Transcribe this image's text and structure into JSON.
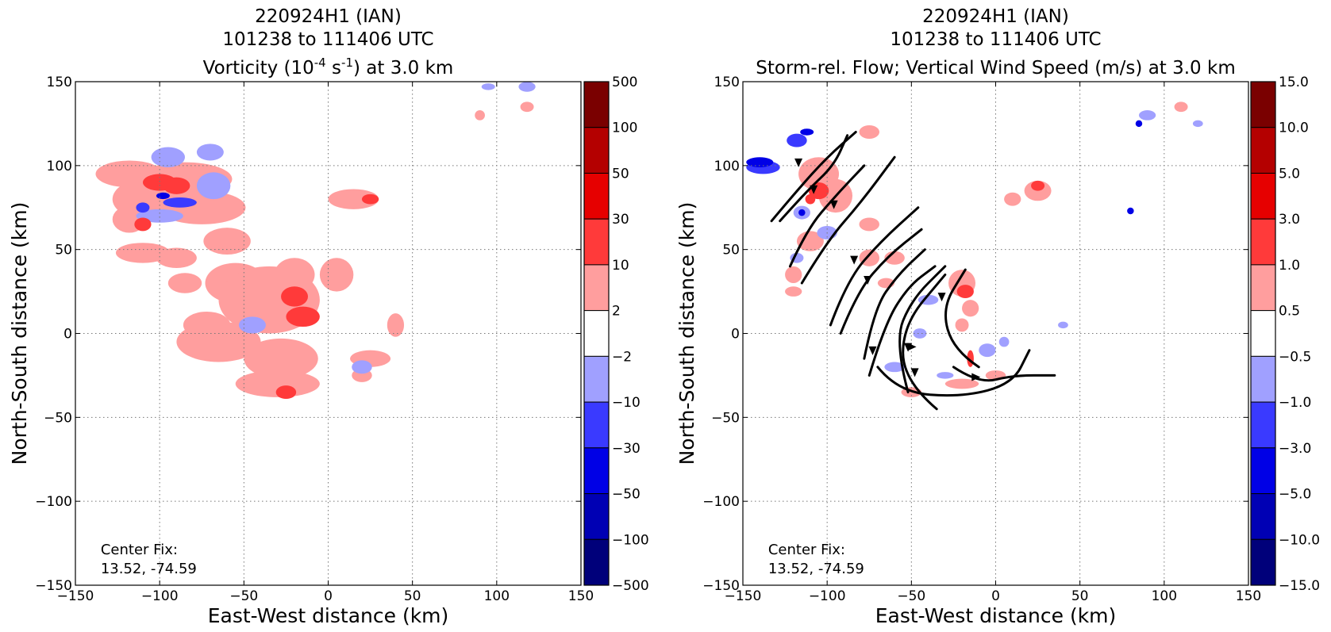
{
  "chart_data": [
    {
      "type": "contour",
      "title_lines": [
        "220924H1 (IAN)",
        "101238 to 111406 UTC"
      ],
      "title_var": {
        "pre": "Vorticity (10",
        "sup1": "-4",
        "mid": " s",
        "sup2": "-1",
        "post": ") at 3.0 km"
      },
      "xlabel": "East-West distance (km)",
      "ylabel": "North-South distance (km)",
      "xlim": [
        -150,
        150
      ],
      "ylim": [
        -150,
        150
      ],
      "ticks": [
        -150,
        -100,
        -50,
        0,
        50,
        100,
        150
      ],
      "tick_labels": [
        "−150",
        "−100",
        "−50",
        "0",
        "50",
        "100",
        "150"
      ],
      "grid": true,
      "annotation": [
        "Center Fix:",
        "13.52, -74.59"
      ],
      "colorbar": {
        "levels": [
          "500",
          "100",
          "50",
          "30",
          "10",
          "2",
          "−2",
          "−10",
          "−30",
          "−50",
          "−100",
          "−500"
        ],
        "colors": [
          "#7a0000",
          "#b40000",
          "#e60000",
          "#ff3a3a",
          "#ff9e9e",
          "#ffffff",
          "#a0a0ff",
          "#3a3aff",
          "#0000e6",
          "#0000b4",
          "#00007a"
        ]
      },
      "features": [
        {
          "c": 4,
          "x": -118,
          "y": 95,
          "rx": 20,
          "ry": 8
        },
        {
          "c": 4,
          "x": -108,
          "y": 80,
          "rx": 20,
          "ry": 12
        },
        {
          "c": 4,
          "x": -85,
          "y": 92,
          "rx": 28,
          "ry": 10
        },
        {
          "c": 4,
          "x": -75,
          "y": 75,
          "rx": 26,
          "ry": 10
        },
        {
          "c": 4,
          "x": -118,
          "y": 68,
          "rx": 10,
          "ry": 8
        },
        {
          "c": 4,
          "x": -110,
          "y": 48,
          "rx": 16,
          "ry": 6
        },
        {
          "c": 4,
          "x": -90,
          "y": 45,
          "rx": 12,
          "ry": 6
        },
        {
          "c": 4,
          "x": -85,
          "y": 30,
          "rx": 10,
          "ry": 6
        },
        {
          "c": 4,
          "x": -60,
          "y": 55,
          "rx": 14,
          "ry": 8
        },
        {
          "c": 4,
          "x": -55,
          "y": 30,
          "rx": 18,
          "ry": 12
        },
        {
          "c": 4,
          "x": -72,
          "y": 5,
          "rx": 14,
          "ry": 8
        },
        {
          "c": 4,
          "x": -65,
          "y": -5,
          "rx": 25,
          "ry": 12
        },
        {
          "c": 4,
          "x": -35,
          "y": 20,
          "rx": 30,
          "ry": 20
        },
        {
          "c": 4,
          "x": -20,
          "y": 35,
          "rx": 12,
          "ry": 10
        },
        {
          "c": 4,
          "x": -28,
          "y": -15,
          "rx": 22,
          "ry": 12
        },
        {
          "c": 4,
          "x": -30,
          "y": -30,
          "rx": 25,
          "ry": 8
        },
        {
          "c": 4,
          "x": 5,
          "y": 35,
          "rx": 10,
          "ry": 10
        },
        {
          "c": 4,
          "x": 15,
          "y": 80,
          "rx": 15,
          "ry": 6
        },
        {
          "c": 4,
          "x": 25,
          "y": -15,
          "rx": 12,
          "ry": 5
        },
        {
          "c": 4,
          "x": 40,
          "y": 5,
          "rx": 5,
          "ry": 7
        },
        {
          "c": 4,
          "x": 20,
          "y": -25,
          "rx": 6,
          "ry": 4
        },
        {
          "c": 6,
          "x": -95,
          "y": 105,
          "rx": 10,
          "ry": 6
        },
        {
          "c": 6,
          "x": -68,
          "y": 88,
          "rx": 10,
          "ry": 8
        },
        {
          "c": 6,
          "x": -100,
          "y": 70,
          "rx": 14,
          "ry": 4
        },
        {
          "c": 6,
          "x": -70,
          "y": 108,
          "rx": 8,
          "ry": 5
        },
        {
          "c": 6,
          "x": -45,
          "y": 5,
          "rx": 8,
          "ry": 5
        },
        {
          "c": 6,
          "x": 20,
          "y": -20,
          "rx": 6,
          "ry": 4
        },
        {
          "c": 6,
          "x": 118,
          "y": 147,
          "rx": 5,
          "ry": 3
        },
        {
          "c": 6,
          "x": 95,
          "y": 147,
          "rx": 4,
          "ry": 2
        },
        {
          "c": 4,
          "x": 118,
          "y": 135,
          "rx": 4,
          "ry": 3
        },
        {
          "c": 4,
          "x": 90,
          "y": 130,
          "rx": 3,
          "ry": 3
        },
        {
          "c": 3,
          "x": -100,
          "y": 90,
          "rx": 10,
          "ry": 5
        },
        {
          "c": 3,
          "x": -90,
          "y": 88,
          "rx": 8,
          "ry": 5
        },
        {
          "c": 3,
          "x": -20,
          "y": 22,
          "rx": 8,
          "ry": 6
        },
        {
          "c": 3,
          "x": -15,
          "y": 10,
          "rx": 10,
          "ry": 6
        },
        {
          "c": 3,
          "x": -25,
          "y": -35,
          "rx": 6,
          "ry": 4
        },
        {
          "c": 3,
          "x": -110,
          "y": 65,
          "rx": 5,
          "ry": 4
        },
        {
          "c": 3,
          "x": 25,
          "y": 80,
          "rx": 5,
          "ry": 3
        },
        {
          "c": 7,
          "x": -88,
          "y": 78,
          "rx": 10,
          "ry": 3
        },
        {
          "c": 7,
          "x": -110,
          "y": 75,
          "rx": 4,
          "ry": 3
        },
        {
          "c": 8,
          "x": -98,
          "y": 82,
          "rx": 4,
          "ry": 2
        }
      ]
    },
    {
      "type": "contour",
      "title_lines": [
        "220924H1 (IAN)",
        "101238 to 111406 UTC"
      ],
      "title_var": {
        "pre": "Storm-rel. Flow; Vertical Wind Speed (m/s) at 3.0 km",
        "sup1": "",
        "mid": "",
        "sup2": "",
        "post": ""
      },
      "xlabel": "East-West distance (km)",
      "ylabel": "North-South distance (km)",
      "xlim": [
        -150,
        150
      ],
      "ylim": [
        -150,
        150
      ],
      "ticks": [
        -150,
        -100,
        -50,
        0,
        50,
        100,
        150
      ],
      "tick_labels": [
        "−150",
        "−100",
        "−50",
        "0",
        "50",
        "100",
        "150"
      ],
      "grid": true,
      "annotation": [
        "Center Fix:",
        "13.52, -74.59"
      ],
      "colorbar": {
        "levels": [
          "15.0",
          "10.0",
          "5.0",
          "3.0",
          "1.0",
          "0.5",
          "−0.5",
          "−1.0",
          "−3.0",
          "−5.0",
          "−10.0",
          "−15.0"
        ],
        "colors": [
          "#7a0000",
          "#b40000",
          "#e60000",
          "#ff3a3a",
          "#ff9e9e",
          "#ffffff",
          "#a0a0ff",
          "#3a3aff",
          "#0000e6",
          "#0000b4",
          "#00007a"
        ]
      },
      "features": [
        {
          "c": 4,
          "x": -105,
          "y": 95,
          "rx": 12,
          "ry": 10
        },
        {
          "c": 4,
          "x": -95,
          "y": 82,
          "rx": 10,
          "ry": 10
        },
        {
          "c": 4,
          "x": -110,
          "y": 55,
          "rx": 8,
          "ry": 6
        },
        {
          "c": 4,
          "x": -120,
          "y": 35,
          "rx": 5,
          "ry": 5
        },
        {
          "c": 4,
          "x": -75,
          "y": 65,
          "rx": 6,
          "ry": 4
        },
        {
          "c": 4,
          "x": -75,
          "y": 45,
          "rx": 6,
          "ry": 5
        },
        {
          "c": 4,
          "x": -60,
          "y": 45,
          "rx": 6,
          "ry": 4
        },
        {
          "c": 4,
          "x": -20,
          "y": 30,
          "rx": 8,
          "ry": 8
        },
        {
          "c": 4,
          "x": -15,
          "y": 15,
          "rx": 5,
          "ry": 5
        },
        {
          "c": 4,
          "x": -20,
          "y": 5,
          "rx": 4,
          "ry": 4
        },
        {
          "c": 4,
          "x": 25,
          "y": 85,
          "rx": 8,
          "ry": 6
        },
        {
          "c": 4,
          "x": 10,
          "y": 80,
          "rx": 5,
          "ry": 4
        },
        {
          "c": 4,
          "x": -75,
          "y": 120,
          "rx": 6,
          "ry": 4
        },
        {
          "c": 4,
          "x": -50,
          "y": -35,
          "rx": 6,
          "ry": 3
        },
        {
          "c": 4,
          "x": -20,
          "y": -30,
          "rx": 10,
          "ry": 3
        },
        {
          "c": 4,
          "x": 0,
          "y": -25,
          "rx": 6,
          "ry": 3
        },
        {
          "c": 4,
          "x": 110,
          "y": 135,
          "rx": 4,
          "ry": 3
        },
        {
          "c": 4,
          "x": -120,
          "y": 25,
          "rx": 5,
          "ry": 3
        },
        {
          "c": 4,
          "x": -65,
          "y": 30,
          "rx": 5,
          "ry": 3
        },
        {
          "c": 3,
          "x": -105,
          "y": 85,
          "rx": 6,
          "ry": 5
        },
        {
          "c": 3,
          "x": -110,
          "y": 80,
          "rx": 3,
          "ry": 3
        },
        {
          "c": 3,
          "x": -18,
          "y": 25,
          "rx": 5,
          "ry": 4
        },
        {
          "c": 3,
          "x": 25,
          "y": 88,
          "rx": 4,
          "ry": 3
        },
        {
          "c": 3,
          "x": -15,
          "y": -15,
          "rx": 2,
          "ry": 5
        },
        {
          "c": 7,
          "x": -138,
          "y": 99,
          "rx": 10,
          "ry": 4
        },
        {
          "c": 7,
          "x": -118,
          "y": 115,
          "rx": 6,
          "ry": 4
        },
        {
          "c": 6,
          "x": -115,
          "y": 72,
          "rx": 5,
          "ry": 4
        },
        {
          "c": 6,
          "x": -100,
          "y": 60,
          "rx": 6,
          "ry": 4
        },
        {
          "c": 6,
          "x": -118,
          "y": 45,
          "rx": 4,
          "ry": 3
        },
        {
          "c": 6,
          "x": -40,
          "y": 20,
          "rx": 6,
          "ry": 3
        },
        {
          "c": 6,
          "x": -45,
          "y": 0,
          "rx": 4,
          "ry": 3
        },
        {
          "c": 6,
          "x": -60,
          "y": -20,
          "rx": 6,
          "ry": 3
        },
        {
          "c": 6,
          "x": -5,
          "y": -10,
          "rx": 5,
          "ry": 4
        },
        {
          "c": 6,
          "x": 5,
          "y": -5,
          "rx": 3,
          "ry": 3
        },
        {
          "c": 6,
          "x": 90,
          "y": 130,
          "rx": 5,
          "ry": 3
        },
        {
          "c": 6,
          "x": 120,
          "y": 125,
          "rx": 3,
          "ry": 2
        },
        {
          "c": 6,
          "x": -30,
          "y": -25,
          "rx": 5,
          "ry": 2
        },
        {
          "c": 6,
          "x": 40,
          "y": 5,
          "rx": 3,
          "ry": 2
        },
        {
          "c": 8,
          "x": -140,
          "y": 102,
          "rx": 8,
          "ry": 3
        },
        {
          "c": 8,
          "x": -112,
          "y": 120,
          "rx": 4,
          "ry": 2
        },
        {
          "c": 8,
          "x": 85,
          "y": 125,
          "rx": 2,
          "ry": 2
        },
        {
          "c": 8,
          "x": 80,
          "y": 73,
          "rx": 2,
          "ry": 2
        },
        {
          "c": 8,
          "x": -115,
          "y": 72,
          "rx": 2,
          "ry": 2
        }
      ],
      "streamlines": [
        [
          [
            -133,
            67
          ],
          [
            -118,
            85
          ],
          [
            -100,
            105
          ],
          [
            -83,
            120
          ]
        ],
        [
          [
            -128,
            67
          ],
          [
            -112,
            85
          ],
          [
            -96,
            100
          ],
          [
            -88,
            118
          ]
        ],
        [
          [
            -122,
            40
          ],
          [
            -112,
            62
          ],
          [
            -95,
            82
          ],
          [
            -78,
            100
          ]
        ],
        [
          [
            -115,
            30
          ],
          [
            -100,
            55
          ],
          [
            -80,
            78
          ],
          [
            -60,
            105
          ]
        ],
        [
          [
            -98,
            5
          ],
          [
            -88,
            32
          ],
          [
            -68,
            55
          ],
          [
            -46,
            75
          ]
        ],
        [
          [
            -92,
            0
          ],
          [
            -82,
            25
          ],
          [
            -64,
            46
          ],
          [
            -44,
            62
          ]
        ],
        [
          [
            -78,
            -15
          ],
          [
            -72,
            15
          ],
          [
            -58,
            35
          ],
          [
            -42,
            50
          ]
        ],
        [
          [
            -75,
            -25
          ],
          [
            -66,
            5
          ],
          [
            -52,
            28
          ],
          [
            -36,
            40
          ]
        ],
        [
          [
            -52,
            -35
          ],
          [
            -60,
            -5
          ],
          [
            -50,
            20
          ],
          [
            -30,
            40
          ]
        ],
        [
          [
            -10,
            -20
          ],
          [
            -25,
            -10
          ],
          [
            -32,
            15
          ],
          [
            -18,
            38
          ]
        ],
        [
          [
            -35,
            -45
          ],
          [
            -55,
            -28
          ],
          [
            -55,
            5
          ],
          [
            -30,
            35
          ]
        ],
        [
          [
            -70,
            -20
          ],
          [
            -58,
            -35
          ],
          [
            -20,
            -38
          ],
          [
            10,
            -30
          ],
          [
            20,
            -10
          ]
        ],
        [
          [
            -25,
            -20
          ],
          [
            -10,
            -30
          ],
          [
            10,
            -25
          ],
          [
            35,
            -25
          ]
        ]
      ],
      "arrows": [
        [
          -117,
          100,
          "down"
        ],
        [
          -108,
          84,
          "down"
        ],
        [
          -96,
          75,
          "down"
        ],
        [
          -84,
          42,
          "down"
        ],
        [
          -76,
          30,
          "down"
        ],
        [
          -73,
          -12,
          "down"
        ],
        [
          -48,
          -25,
          "down"
        ],
        [
          -52,
          -10,
          "down"
        ],
        [
          -32,
          20,
          "down"
        ],
        [
          -48,
          -8,
          "right"
        ],
        [
          -10,
          -26,
          "right"
        ]
      ]
    }
  ]
}
